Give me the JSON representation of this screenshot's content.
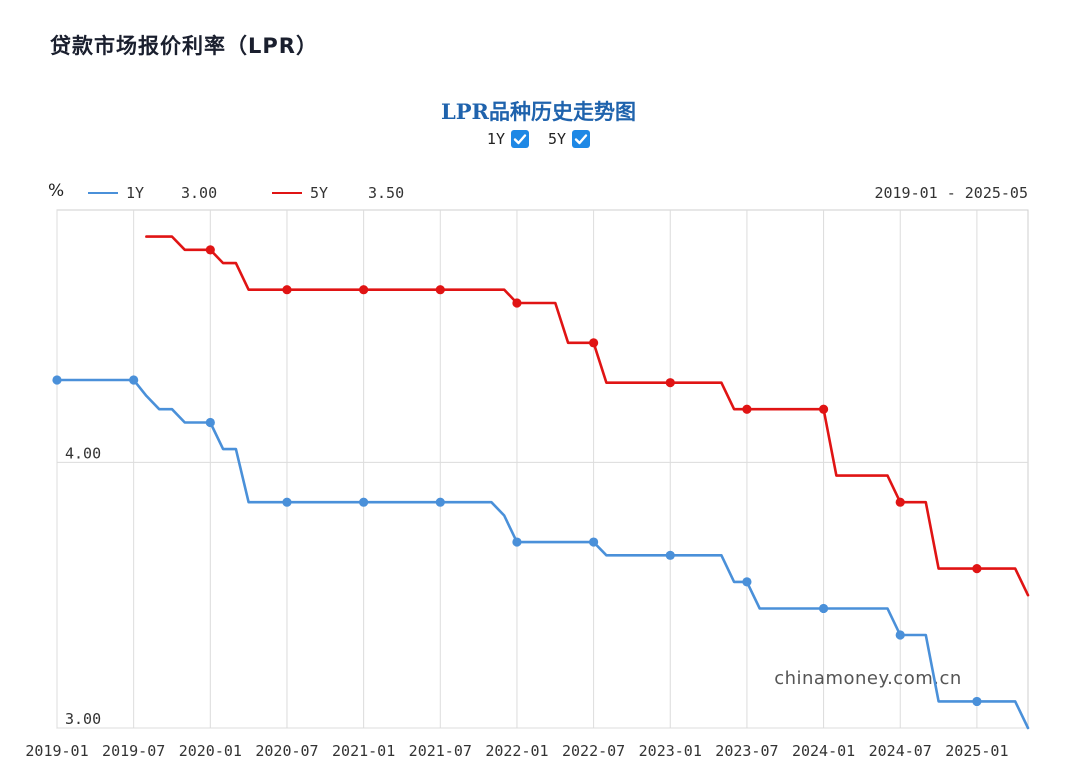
{
  "page": {
    "heading": "贷款市场报价利率（LPR）"
  },
  "toggles": [
    {
      "label": "1Y",
      "checked": true
    },
    {
      "label": "5Y",
      "checked": true
    }
  ],
  "legend": {
    "unit": "%",
    "date_range": "2019-01 - 2025-05",
    "entries": [
      {
        "name": "1Y",
        "value": "3.00",
        "color": "#4a90d9"
      },
      {
        "name": "5Y",
        "value": "3.50",
        "color": "#e01414"
      }
    ]
  },
  "watermark": "chinamoney.com.cn",
  "chart_data": {
    "type": "line",
    "title": "LPR品种历史走势图",
    "xlabel": "",
    "ylabel": "%",
    "x_range": [
      "2019-01",
      "2025-05"
    ],
    "ylim": [
      3.0,
      4.95
    ],
    "y_ticks": [
      {
        "value": 4.0,
        "label": "4.00"
      },
      {
        "value": 3.0,
        "label": "3.00"
      }
    ],
    "x_ticks": [
      "2019-01",
      "2019-07",
      "2020-01",
      "2020-07",
      "2021-01",
      "2021-07",
      "2022-01",
      "2022-07",
      "2023-01",
      "2023-07",
      "2024-01",
      "2024-07",
      "2025-01"
    ],
    "grid": true,
    "legend_position": "top-left",
    "series": [
      {
        "name": "1Y",
        "color": "#4a90d9",
        "values": [
          [
            "2019-01",
            4.31
          ],
          [
            "2019-07",
            4.31
          ],
          [
            "2019-08",
            4.25
          ],
          [
            "2019-09",
            4.2
          ],
          [
            "2019-10",
            4.2
          ],
          [
            "2019-11",
            4.15
          ],
          [
            "2019-12",
            4.15
          ],
          [
            "2020-01",
            4.15
          ],
          [
            "2020-02",
            4.05
          ],
          [
            "2020-03",
            4.05
          ],
          [
            "2020-04",
            3.85
          ],
          [
            "2020-07",
            3.85
          ],
          [
            "2021-01",
            3.85
          ],
          [
            "2021-07",
            3.85
          ],
          [
            "2021-11",
            3.85
          ],
          [
            "2021-12",
            3.8
          ],
          [
            "2022-01",
            3.7
          ],
          [
            "2022-07",
            3.7
          ],
          [
            "2022-08",
            3.65
          ],
          [
            "2023-01",
            3.65
          ],
          [
            "2023-05",
            3.65
          ],
          [
            "2023-06",
            3.55
          ],
          [
            "2023-07",
            3.55
          ],
          [
            "2023-08",
            3.45
          ],
          [
            "2024-01",
            3.45
          ],
          [
            "2024-06",
            3.45
          ],
          [
            "2024-07",
            3.35
          ],
          [
            "2024-09",
            3.35
          ],
          [
            "2024-10",
            3.1
          ],
          [
            "2025-01",
            3.1
          ],
          [
            "2025-04",
            3.1
          ],
          [
            "2025-05",
            3.0
          ]
        ]
      },
      {
        "name": "5Y",
        "color": "#e01414",
        "values": [
          [
            "2019-08",
            4.85
          ],
          [
            "2019-10",
            4.85
          ],
          [
            "2019-11",
            4.8
          ],
          [
            "2020-01",
            4.8
          ],
          [
            "2020-02",
            4.75
          ],
          [
            "2020-03",
            4.75
          ],
          [
            "2020-04",
            4.65
          ],
          [
            "2020-07",
            4.65
          ],
          [
            "2021-01",
            4.65
          ],
          [
            "2021-07",
            4.65
          ],
          [
            "2021-12",
            4.65
          ],
          [
            "2022-01",
            4.6
          ],
          [
            "2022-04",
            4.6
          ],
          [
            "2022-05",
            4.45
          ],
          [
            "2022-07",
            4.45
          ],
          [
            "2022-08",
            4.3
          ],
          [
            "2023-01",
            4.3
          ],
          [
            "2023-05",
            4.3
          ],
          [
            "2023-06",
            4.2
          ],
          [
            "2023-07",
            4.2
          ],
          [
            "2024-01",
            4.2
          ],
          [
            "2024-02",
            3.95
          ],
          [
            "2024-06",
            3.95
          ],
          [
            "2024-07",
            3.85
          ],
          [
            "2024-09",
            3.85
          ],
          [
            "2024-10",
            3.6
          ],
          [
            "2025-01",
            3.6
          ],
          [
            "2025-04",
            3.6
          ],
          [
            "2025-05",
            3.5
          ]
        ]
      }
    ],
    "markers": {
      "1Y": [
        [
          "2019-01",
          4.31
        ],
        [
          "2019-07",
          4.31
        ],
        [
          "2020-01",
          4.15
        ],
        [
          "2020-07",
          3.85
        ],
        [
          "2021-01",
          3.85
        ],
        [
          "2021-07",
          3.85
        ],
        [
          "2022-01",
          3.7
        ],
        [
          "2022-07",
          3.7
        ],
        [
          "2023-01",
          3.65
        ],
        [
          "2023-07",
          3.55
        ],
        [
          "2024-01",
          3.45
        ],
        [
          "2024-07",
          3.35
        ],
        [
          "2025-01",
          3.1
        ]
      ],
      "5Y": [
        [
          "2020-01",
          4.8
        ],
        [
          "2020-07",
          4.65
        ],
        [
          "2021-01",
          4.65
        ],
        [
          "2021-07",
          4.65
        ],
        [
          "2022-01",
          4.6
        ],
        [
          "2022-07",
          4.45
        ],
        [
          "2023-01",
          4.3
        ],
        [
          "2023-07",
          4.2
        ],
        [
          "2024-01",
          4.2
        ],
        [
          "2024-07",
          3.85
        ],
        [
          "2025-01",
          3.6
        ]
      ]
    }
  }
}
